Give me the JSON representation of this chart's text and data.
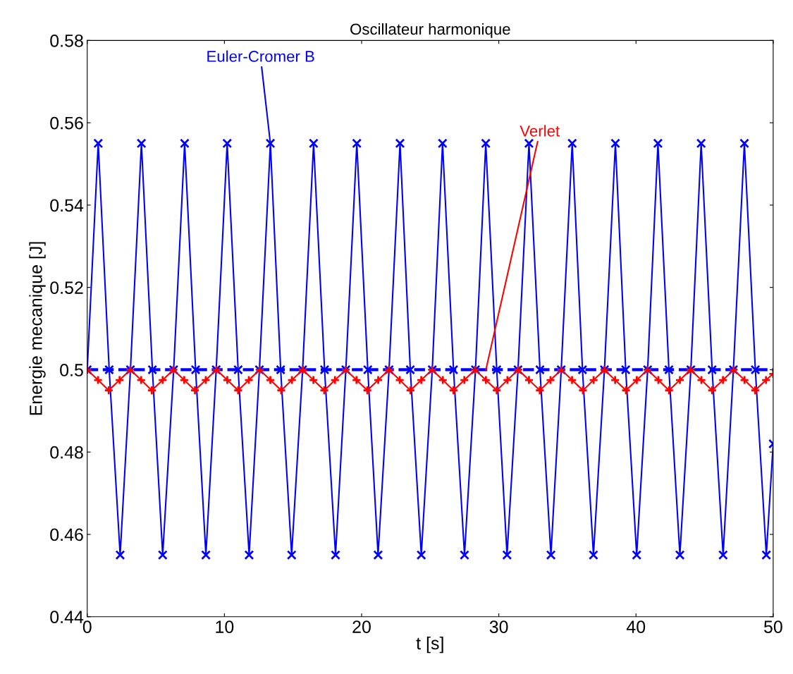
{
  "chart_data": {
    "type": "line",
    "title": "Oscillateur harmonique",
    "xlabel": "t [s]",
    "ylabel": "Energie mecanique [J]",
    "xlim": [
      0,
      50
    ],
    "xticks": [
      0,
      10,
      20,
      30,
      40,
      50
    ],
    "ylim": [
      0.44,
      0.58
    ],
    "yticks": [
      0.44,
      0.46,
      0.48,
      0.5,
      0.52,
      0.54,
      0.56,
      0.58
    ],
    "grid": false,
    "line_style": "solid",
    "series": [
      {
        "color": "#0000ff",
        "marker": "cross",
        "x": [
          0,
          0.8,
          1.6,
          2.4,
          3.15,
          3.95,
          4.75,
          5.5,
          6.3,
          7.1,
          7.9,
          8.65,
          9.4,
          10.2,
          11.0,
          11.8,
          12.55,
          13.35,
          14.1,
          14.9,
          15.7,
          16.5,
          17.3,
          18.1,
          18.85,
          19.65,
          20.45,
          21.2,
          22.0,
          22.8,
          23.55,
          24.35,
          25.15,
          25.9,
          26.7,
          27.5,
          28.3,
          29.05,
          29.85,
          30.6,
          31.4,
          32.2,
          33.0,
          33.8,
          34.55,
          35.35,
          36.1,
          36.9,
          37.7,
          38.5,
          39.25,
          40.05,
          40.85,
          41.6,
          42.4,
          43.2,
          44.0,
          44.75,
          45.55,
          46.35,
          47.1,
          47.9,
          48.7,
          49.5,
          50
        ],
        "values": [
          0.5,
          0.555,
          0.5,
          0.455,
          0.5,
          0.555,
          0.5,
          0.455,
          0.5,
          0.555,
          0.5,
          0.455,
          0.5,
          0.555,
          0.5,
          0.455,
          0.5,
          0.555,
          0.5,
          0.455,
          0.5,
          0.555,
          0.5,
          0.455,
          0.5,
          0.555,
          0.5,
          0.455,
          0.5,
          0.555,
          0.5,
          0.455,
          0.5,
          0.555,
          0.5,
          0.455,
          0.5,
          0.555,
          0.5,
          0.455,
          0.5,
          0.555,
          0.5,
          0.455,
          0.5,
          0.555,
          0.5,
          0.455,
          0.5,
          0.555,
          0.5,
          0.455,
          0.5,
          0.555,
          0.5,
          0.455,
          0.5,
          0.555,
          0.5,
          0.455,
          0.5,
          0.555,
          0.5,
          0.455,
          0.482
        ]
      },
      {
        "color": "#ff0000",
        "marker": "plus",
        "x": [
          0,
          0.79,
          1.57,
          2.36,
          3.14,
          3.93,
          4.71,
          5.5,
          6.28,
          7.07,
          7.85,
          8.64,
          9.42,
          10.21,
          11.0,
          11.78,
          12.57,
          13.35,
          14.14,
          14.92,
          15.71,
          16.49,
          17.28,
          18.06,
          18.85,
          19.63,
          20.42,
          21.21,
          21.99,
          22.78,
          23.56,
          24.35,
          25.13,
          25.92,
          26.7,
          27.49,
          28.27,
          29.06,
          29.85,
          30.63,
          31.42,
          32.2,
          32.99,
          33.77,
          34.56,
          35.34,
          36.13,
          36.91,
          37.7,
          38.48,
          39.27,
          40.06,
          40.84,
          41.63,
          42.41,
          43.2,
          43.98,
          44.77,
          45.55,
          46.34,
          47.12,
          47.91,
          48.69,
          49.48,
          50
        ],
        "values": [
          0.5,
          0.4975,
          0.495,
          0.4975,
          0.5,
          0.4975,
          0.495,
          0.4975,
          0.5,
          0.4975,
          0.495,
          0.4975,
          0.5,
          0.4975,
          0.495,
          0.4975,
          0.5,
          0.4975,
          0.495,
          0.4975,
          0.5,
          0.4975,
          0.495,
          0.4975,
          0.5,
          0.4975,
          0.495,
          0.4975,
          0.5,
          0.4975,
          0.495,
          0.4975,
          0.5,
          0.4975,
          0.495,
          0.4975,
          0.5,
          0.4975,
          0.495,
          0.4975,
          0.5,
          0.4975,
          0.495,
          0.4975,
          0.5,
          0.4975,
          0.495,
          0.4975,
          0.5,
          0.4975,
          0.495,
          0.4975,
          0.5,
          0.4975,
          0.495,
          0.4975,
          0.5,
          0.4975,
          0.495,
          0.4975,
          0.5,
          0.4975,
          0.495,
          0.4975,
          0.499
        ]
      }
    ],
    "ref_lines": [
      {
        "axis": "y",
        "value": 0.5,
        "color": "#0000ff",
        "line_style": "dashed"
      }
    ],
    "annotations": [
      {
        "text": "Euler-Cromer B",
        "x": 13.35,
        "y": 0.555
      },
      {
        "text": "Verlet",
        "x": 29.06,
        "y": 0.5
      }
    ]
  }
}
